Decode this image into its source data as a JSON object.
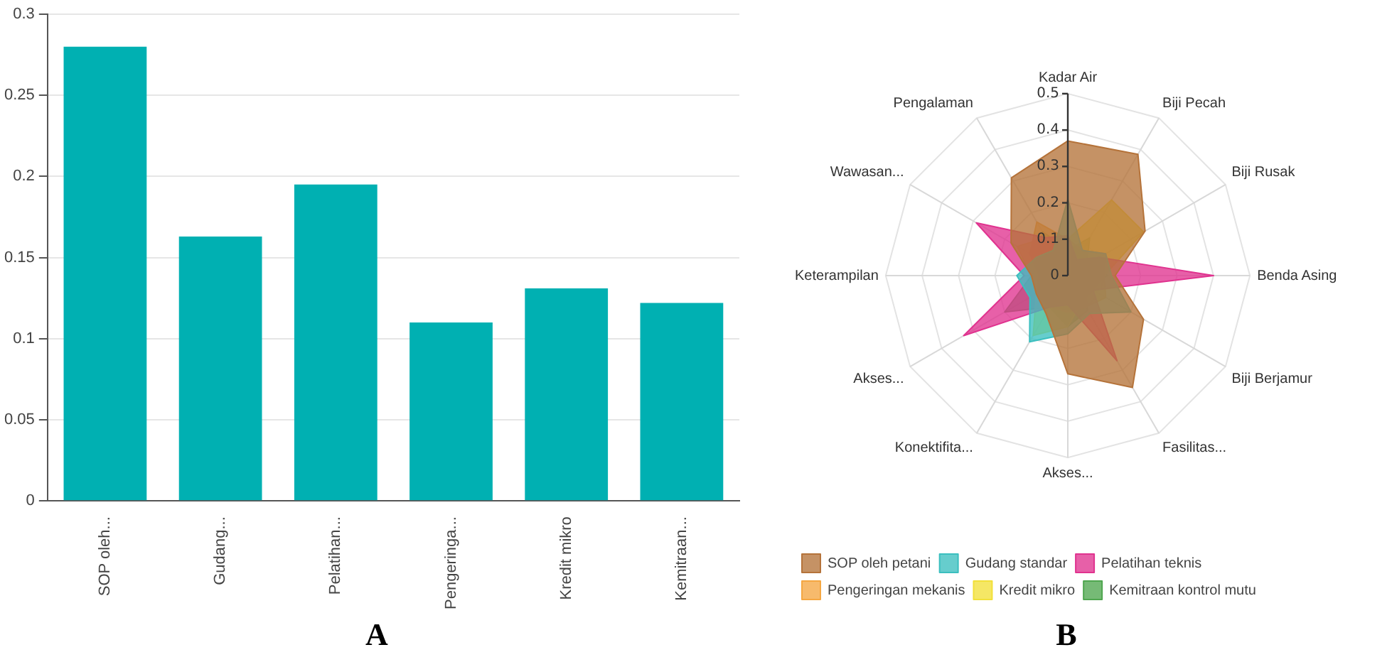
{
  "chart_data": [
    {
      "type": "bar",
      "categories": [
        "SOP oleh...",
        "Gudang...",
        "Pelatihan...",
        "Pengeringa...",
        "Kredit mikro",
        "Kemitraan..."
      ],
      "values": [
        0.28,
        0.163,
        0.195,
        0.11,
        0.131,
        0.122
      ],
      "color": "#00b0b2",
      "ylim": [
        0,
        0.3
      ],
      "yticks": [
        0,
        0.05,
        0.1,
        0.15,
        0.2,
        0.25,
        0.3
      ],
      "grid": "y",
      "annotations": [
        "A"
      ]
    },
    {
      "type": "radar",
      "categories": [
        "Kadar Air",
        "Biji Pecah",
        "Biji Rusak",
        "Benda Asing",
        "Biji Berjamur",
        "Fasilitas...",
        "Akses...",
        "Konektifita...",
        "Akses...",
        "Keterampilan",
        "Wawasan...",
        "Pengalaman"
      ],
      "ylim": [
        0,
        0.5
      ],
      "yticks": [
        0,
        0.1,
        0.2,
        0.3,
        0.4,
        0.5
      ],
      "grid": true,
      "legend": "bottom",
      "marker": "none",
      "annotations": [
        "B"
      ],
      "series": [
        {
          "name": "SOP oleh petani",
          "color": "#b5733a",
          "values": [
            0.37,
            0.385,
            0.245,
            0.13,
            0.24,
            0.355,
            0.27,
            0.12,
            0.1,
            0.1,
            0.18,
            0.31
          ]
        },
        {
          "name": "Gudang standar",
          "color": "#3bbfbf",
          "values": [
            0.21,
            0.08,
            0.12,
            0.12,
            0.2,
            0.12,
            0.16,
            0.21,
            0.12,
            0.14,
            0.1,
            0.08
          ]
        },
        {
          "name": "Pelatihan teknis",
          "color": "#e0338f",
          "values": [
            0.11,
            0.05,
            0.1,
            0.4,
            0.08,
            0.27,
            0.08,
            0.1,
            0.33,
            0.12,
            0.29,
            0.12
          ]
        },
        {
          "name": "Pengeringan mekanis",
          "color": "#f5a742",
          "values": [
            0.1,
            0.08,
            0.12,
            0.1,
            0.12,
            0.1,
            0.1,
            0.1,
            0.1,
            0.08,
            0.12,
            0.17
          ]
        },
        {
          "name": "Kredit mikro",
          "color": "#f2e03a",
          "values": [
            0.1,
            0.24,
            0.24,
            0.1,
            0.08,
            0.08,
            0.14,
            0.19,
            0.1,
            0.1,
            0.16,
            0.12
          ]
        },
        {
          "name": "Kemitraan kontrol mutu",
          "color": "#4fa64f",
          "values": [
            0.07,
            0.12,
            0.06,
            0.11,
            0.05,
            0.11,
            0.14,
            0.1,
            0.2,
            0.1,
            0.08,
            0.14
          ]
        }
      ]
    }
  ]
}
